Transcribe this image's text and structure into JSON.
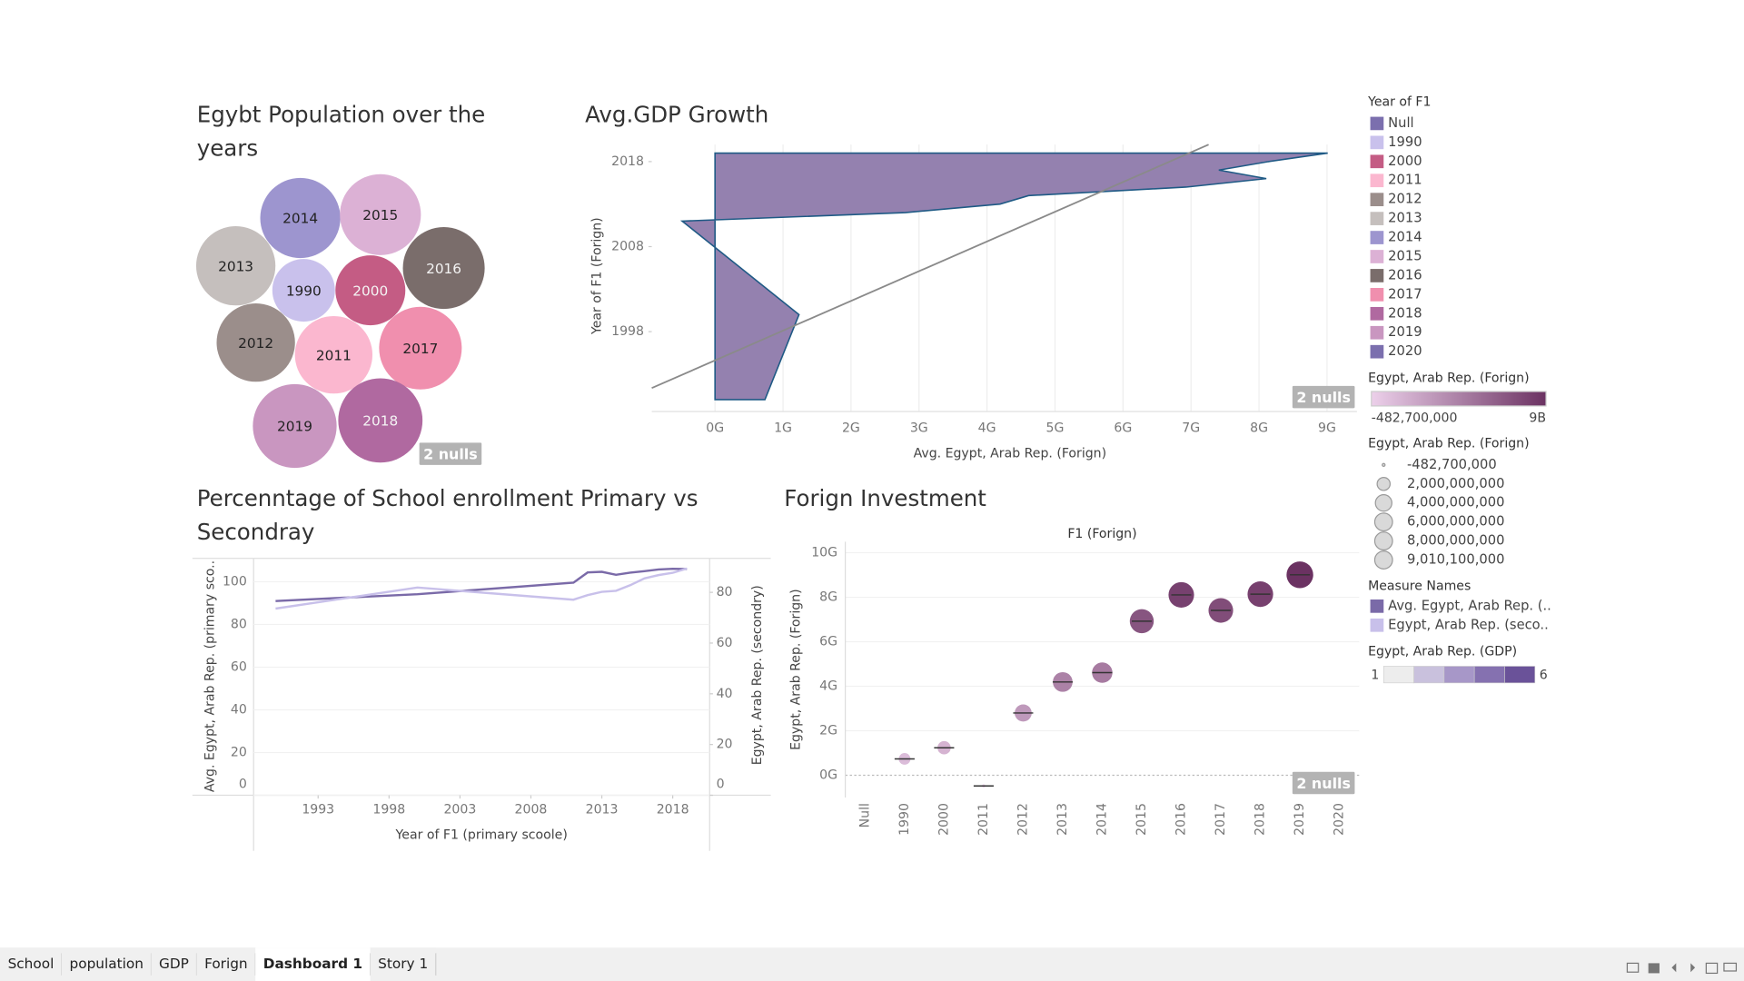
{
  "chart_data": [
    {
      "type": "bubble",
      "title": "Egybt Population over the years",
      "categories": [
        "2014",
        "2015",
        "2013",
        "1990",
        "2000",
        "2016",
        "2012",
        "2011",
        "2017",
        "2019",
        "2018"
      ],
      "values": [
        91800000,
        93800000,
        89800000,
        56100000,
        69900000,
        95700000,
        87800000,
        85900000,
        97600000,
        100400000,
        101500000
      ],
      "colors": [
        "#9d95cf",
        "#dcb1d5",
        "#c5bfbd",
        "#c9c1ec",
        "#c45c84",
        "#7a6d6b",
        "#9b8e8b",
        "#fbb7cf",
        "#f08fae",
        "#c996c0",
        "#b069a0"
      ],
      "null_badge": "2 nulls"
    },
    {
      "type": "area",
      "title": "Avg.GDP Growth",
      "orientation": "horizontal",
      "x_label": "Avg. Egypt, Arab Rep. (Forign)",
      "y_label": "Year of F1 (Forign)",
      "y": [
        1990,
        2000,
        2011,
        2012,
        2013,
        2014,
        2015,
        2016,
        2017,
        2018,
        2019
      ],
      "values": [
        734000000,
        1235000000,
        -482700000,
        2798000000,
        4192000000,
        4612000000,
        6925000000,
        8107000000,
        7409000000,
        8141000000,
        9010100000
      ],
      "color": "#8e7aab",
      "line_color": "#1f5a85",
      "trend_line": true,
      "trend_color": "#8a8a8a",
      "xlim": [
        -930000000,
        9440000000
      ],
      "xticks": [
        {
          "value": 0,
          "label": "0G"
        },
        {
          "value": 1000000000,
          "label": "1G"
        },
        {
          "value": 2000000000,
          "label": "2G"
        },
        {
          "value": 3000000000,
          "label": "3G"
        },
        {
          "value": 4000000000,
          "label": "4G"
        },
        {
          "value": 5000000000,
          "label": "5G"
        },
        {
          "value": 6000000000,
          "label": "6G"
        },
        {
          "value": 7000000000,
          "label": "7G"
        },
        {
          "value": 8000000000,
          "label": "8G"
        },
        {
          "value": 9000000000,
          "label": "9G"
        }
      ],
      "ylim": [
        1988.6,
        2020
      ],
      "yticks": [
        1998,
        2008,
        2018
      ],
      "grid": true,
      "null_badge": "2 nulls"
    },
    {
      "type": "line",
      "title": "Percenntage of School enrollment Primary vs Secondray",
      "x_label": "Year of F1 (primary scoole)",
      "y_label": "Avg. Egypt, Arab Rep. (primary sco..",
      "y2_label": "Egypt, Arab Rep. (secondry)",
      "x": [
        1990,
        2000,
        2011,
        2012,
        2013,
        2014,
        2015,
        2016,
        2017,
        2018,
        2019
      ],
      "xlim": [
        1988.45,
        2020.6
      ],
      "xticks": [
        1993,
        1998,
        2003,
        2008,
        2013,
        2018
      ],
      "ylim": [
        0,
        111
      ],
      "yticks": [
        0,
        20,
        40,
        60,
        80,
        100
      ],
      "y2lim": [
        0,
        93.4
      ],
      "y2ticks": [
        0,
        20,
        40,
        60,
        80
      ],
      "grid": true,
      "series": [
        {
          "name": "Avg. Egypt, Arab Rep. (..",
          "color": "#7a6aa8",
          "values": [
            91.0,
            94.2,
            99.6,
            104.4,
            104.7,
            103.3,
            104.3,
            105.0,
            105.8,
            106.1,
            106.0
          ]
        },
        {
          "name": "Egypt, Arab Rep. (seco..",
          "color": "#c8c0ea",
          "axis": "y2",
          "values": [
            73.6,
            81.9,
            77.1,
            78.9,
            80.2,
            80.6,
            82.8,
            85.5,
            86.8,
            87.7,
            89.4
          ]
        }
      ]
    },
    {
      "type": "scatter",
      "title": "Forign Investment",
      "subtitle": "F1 (Forign)",
      "y_label": "Egypt, Arab Rep. (Forign)",
      "categories": [
        "Null",
        "1990",
        "2000",
        "2011",
        "2012",
        "2013",
        "2014",
        "2015",
        "2016",
        "2017",
        "2018",
        "2019",
        "2020"
      ],
      "values": [
        null,
        734000000,
        1235000000,
        -482700000,
        2798000000,
        4192000000,
        4612000000,
        6925000000,
        8107000000,
        7409000000,
        8141000000,
        9010100000,
        null
      ],
      "ylim": [
        -1000000000,
        10500000000
      ],
      "yticks": [
        {
          "value": 0,
          "label": "0G"
        },
        {
          "value": 2000000000,
          "label": "2G"
        },
        {
          "value": 4000000000,
          "label": "4G"
        },
        {
          "value": 6000000000,
          "label": "6G"
        },
        {
          "value": 8000000000,
          "label": "8G"
        },
        {
          "value": 10000000000,
          "label": "10G"
        }
      ],
      "grid": true,
      "null_badge": "2 nulls"
    }
  ],
  "legends": {
    "year": {
      "title": "Year of F1",
      "items": [
        {
          "label": "Null",
          "color": "#7b6fae"
        },
        {
          "label": "1990",
          "color": "#c9c1ec"
        },
        {
          "label": "2000",
          "color": "#c45c84"
        },
        {
          "label": "2011",
          "color": "#fbb7cf"
        },
        {
          "label": "2012",
          "color": "#9b8e8b"
        },
        {
          "label": "2013",
          "color": "#c5bfbd"
        },
        {
          "label": "2014",
          "color": "#9d95cf"
        },
        {
          "label": "2015",
          "color": "#dcb1d5"
        },
        {
          "label": "2016",
          "color": "#7a6d6b"
        },
        {
          "label": "2017",
          "color": "#f08fae"
        },
        {
          "label": "2018",
          "color": "#b069a0"
        },
        {
          "label": "2019",
          "color": "#c996c0"
        },
        {
          "label": "2020",
          "color": "#7b6fae"
        }
      ]
    },
    "color_gradient": {
      "title": "Egypt, Arab Rep. (Forign)",
      "min": {
        "value": -482700000,
        "label": "-482,700,000"
      },
      "max": {
        "value": 9010100000,
        "label": "9B"
      },
      "colors": [
        "#ecd0ea",
        "#6b3262"
      ]
    },
    "size": {
      "title": "Egypt, Arab Rep. (Forign)",
      "items": [
        {
          "value": -482700000,
          "label": "-482,700,000"
        },
        {
          "value": 2000000000,
          "label": "2,000,000,000"
        },
        {
          "value": 4000000000,
          "label": "4,000,000,000"
        },
        {
          "value": 6000000000,
          "label": "6,000,000,000"
        },
        {
          "value": 8000000000,
          "label": "8,000,000,000"
        },
        {
          "value": 9010100000,
          "label": "9,010,100,000"
        }
      ]
    },
    "measure_names": {
      "title": "Measure Names"
    },
    "gdp": {
      "title": "Egypt, Arab Rep. (GDP)",
      "min": 1,
      "max": 6,
      "colors": [
        "#ededed",
        "#c9c1dd",
        "#a797c8",
        "#8571b0",
        "#6a5299"
      ]
    }
  },
  "tabs": {
    "items": [
      "School",
      "population",
      "GDP",
      "Forign",
      "Dashboard 1",
      "Story 1"
    ],
    "active": 4
  }
}
